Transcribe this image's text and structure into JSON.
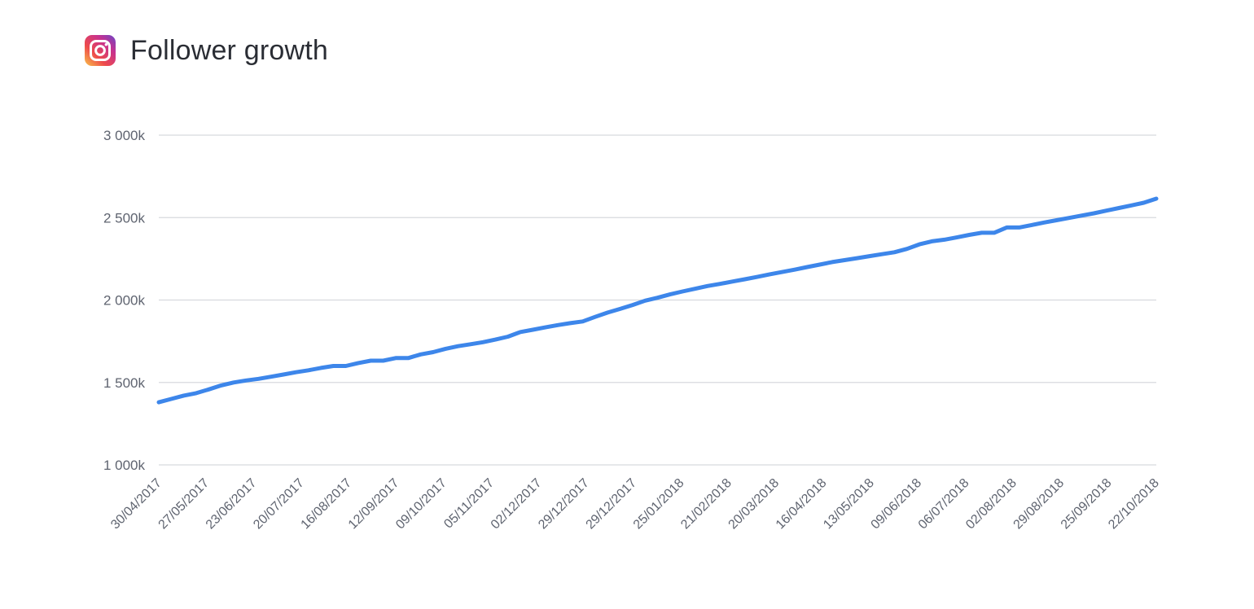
{
  "header": {
    "title": "Follower growth",
    "icon": "instagram-icon"
  },
  "chart_data": {
    "type": "line",
    "title": "Follower growth",
    "xlabel": "",
    "ylabel": "",
    "ylim": [
      1000,
      3000
    ],
    "yticks": [
      1000,
      1500,
      2000,
      2500,
      3000
    ],
    "ytick_labels": [
      "1 000k",
      "1 500k",
      "2 000k",
      "2 500k",
      "3 000k"
    ],
    "x_tick_labels": [
      "30/04/2017",
      "27/05/2017",
      "23/06/2017",
      "20/07/2017",
      "16/08/2017",
      "12/09/2017",
      "09/10/2017",
      "05/11/2017",
      "02/12/2017",
      "29/12/2017",
      "29/12/2017",
      "25/01/2018",
      "21/02/2018",
      "20/03/2018",
      "16/04/2018",
      "13/05/2018",
      "09/06/2018",
      "06/07/2018",
      "02/08/2018",
      "29/08/2018",
      "25/09/2018",
      "22/10/2018"
    ],
    "grid": true,
    "legend": "none",
    "line_color": "#3d86ea",
    "series": [
      {
        "values": [
          1380,
          1400,
          1420,
          1435,
          1458,
          1482,
          1500,
          1512,
          1522,
          1535,
          1548,
          1562,
          1574,
          1588,
          1600,
          1600,
          1618,
          1632,
          1632,
          1648,
          1648,
          1670,
          1684,
          1704,
          1720,
          1732,
          1744,
          1760,
          1778,
          1806,
          1820,
          1834,
          1848,
          1860,
          1870,
          1898,
          1924,
          1946,
          1970,
          1996,
          2014,
          2034,
          2052,
          2068,
          2085,
          2098,
          2112,
          2126,
          2140,
          2156,
          2170,
          2184,
          2200,
          2215,
          2230,
          2242,
          2254,
          2266,
          2278,
          2290,
          2310,
          2338,
          2356,
          2366,
          2380,
          2395,
          2408,
          2408,
          2440,
          2440,
          2455,
          2470,
          2484,
          2498,
          2512,
          2526,
          2542,
          2558,
          2574,
          2590,
          2615
        ]
      }
    ]
  }
}
